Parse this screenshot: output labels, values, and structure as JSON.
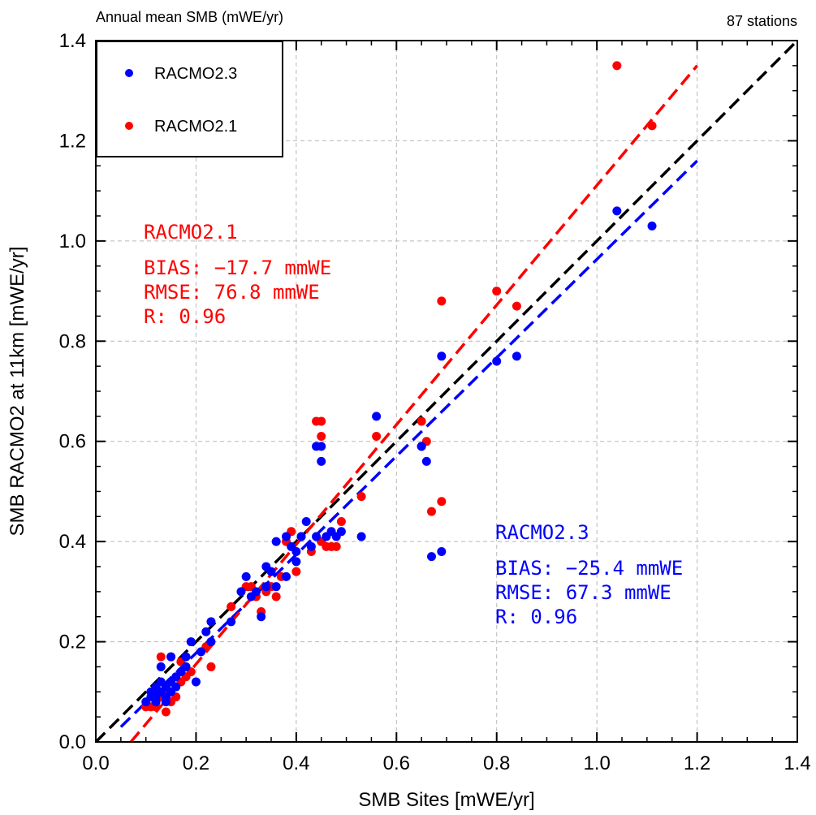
{
  "header": {
    "left_title": "Annual mean SMB (mWE/yr)",
    "right_title": "87 stations"
  },
  "colors": {
    "racmo23": "#0000ff",
    "racmo21": "#ff0000",
    "identity": "#000000",
    "grid": "#b8b8b8"
  },
  "legend": {
    "items": [
      {
        "label": "RACMO2.3",
        "color": "#0000ff"
      },
      {
        "label": "RACMO2.1",
        "color": "#ff0000"
      }
    ]
  },
  "stats": {
    "racmo21": {
      "name": "RACMO2.1",
      "bias": "BIAS: −17.7 mmWE",
      "rmse": "RMSE: 76.8 mmWE",
      "r": "R: 0.96"
    },
    "racmo23": {
      "name": "RACMO2.3",
      "bias": "BIAS: −25.4 mmWE",
      "rmse": "RMSE: 67.3 mmWE",
      "r": "R: 0.96"
    }
  },
  "chart_data": {
    "type": "scatter",
    "title": "Annual mean SMB (mWE/yr)",
    "subtitle": "87 stations",
    "xlabel": "SMB Sites [mWE/yr]",
    "ylabel": "SMB RACMO2 at 11km [mWE/yr]",
    "xlim": [
      0.0,
      1.4
    ],
    "ylim": [
      0.0,
      1.4
    ],
    "xticks": [
      "0.0",
      "0.2",
      "0.4",
      "0.6",
      "0.8",
      "1.0",
      "1.2",
      "1.4"
    ],
    "yticks": [
      "0.0",
      "0.2",
      "0.4",
      "0.6",
      "0.8",
      "1.0",
      "1.2",
      "1.4"
    ],
    "grid": true,
    "legend_position": "top-left",
    "reference_line": {
      "x": [
        0.0,
        1.4
      ],
      "y": [
        0.0,
        1.4
      ]
    },
    "series": [
      {
        "name": "RACMO2.3",
        "color": "#0000ff",
        "fit_line": {
          "x": [
            0.05,
            1.2
          ],
          "y": [
            0.03,
            1.16
          ]
        },
        "points": [
          [
            0.1,
            0.08
          ],
          [
            0.11,
            0.09
          ],
          [
            0.11,
            0.1
          ],
          [
            0.12,
            0.11
          ],
          [
            0.12,
            0.09
          ],
          [
            0.12,
            0.08
          ],
          [
            0.13,
            0.1
          ],
          [
            0.13,
            0.12
          ],
          [
            0.13,
            0.15
          ],
          [
            0.14,
            0.11
          ],
          [
            0.14,
            0.09
          ],
          [
            0.14,
            0.08
          ],
          [
            0.15,
            0.1
          ],
          [
            0.15,
            0.12
          ],
          [
            0.15,
            0.17
          ],
          [
            0.16,
            0.13
          ],
          [
            0.16,
            0.11
          ],
          [
            0.17,
            0.14
          ],
          [
            0.18,
            0.17
          ],
          [
            0.18,
            0.15
          ],
          [
            0.19,
            0.2
          ],
          [
            0.2,
            0.12
          ],
          [
            0.21,
            0.18
          ],
          [
            0.22,
            0.22
          ],
          [
            0.23,
            0.24
          ],
          [
            0.23,
            0.2
          ],
          [
            0.27,
            0.24
          ],
          [
            0.29,
            0.3
          ],
          [
            0.3,
            0.33
          ],
          [
            0.31,
            0.29
          ],
          [
            0.32,
            0.3
          ],
          [
            0.33,
            0.25
          ],
          [
            0.34,
            0.35
          ],
          [
            0.34,
            0.31
          ],
          [
            0.35,
            0.34
          ],
          [
            0.36,
            0.4
          ],
          [
            0.36,
            0.31
          ],
          [
            0.38,
            0.41
          ],
          [
            0.38,
            0.33
          ],
          [
            0.39,
            0.39
          ],
          [
            0.4,
            0.36
          ],
          [
            0.4,
            0.38
          ],
          [
            0.41,
            0.41
          ],
          [
            0.42,
            0.44
          ],
          [
            0.43,
            0.39
          ],
          [
            0.44,
            0.59
          ],
          [
            0.44,
            0.41
          ],
          [
            0.45,
            0.56
          ],
          [
            0.45,
            0.59
          ],
          [
            0.46,
            0.41
          ],
          [
            0.47,
            0.42
          ],
          [
            0.48,
            0.41
          ],
          [
            0.49,
            0.42
          ],
          [
            0.53,
            0.41
          ],
          [
            0.56,
            0.65
          ],
          [
            0.65,
            0.59
          ],
          [
            0.65,
            0.59
          ],
          [
            0.66,
            0.56
          ],
          [
            0.67,
            0.37
          ],
          [
            0.69,
            0.38
          ],
          [
            0.69,
            0.77
          ],
          [
            0.8,
            0.76
          ],
          [
            0.84,
            0.77
          ],
          [
            1.04,
            1.06
          ],
          [
            1.11,
            1.03
          ]
        ]
      },
      {
        "name": "RACMO2.1",
        "color": "#ff0000",
        "fit_line": {
          "x": [
            0.07,
            1.2
          ],
          "y": [
            0.0,
            1.35
          ]
        },
        "points": [
          [
            0.1,
            0.07
          ],
          [
            0.11,
            0.07
          ],
          [
            0.12,
            0.08
          ],
          [
            0.12,
            0.07
          ],
          [
            0.13,
            0.09
          ],
          [
            0.13,
            0.17
          ],
          [
            0.14,
            0.06
          ],
          [
            0.14,
            0.1
          ],
          [
            0.15,
            0.17
          ],
          [
            0.15,
            0.08
          ],
          [
            0.16,
            0.09
          ],
          [
            0.17,
            0.12
          ],
          [
            0.17,
            0.16
          ],
          [
            0.18,
            0.13
          ],
          [
            0.19,
            0.14
          ],
          [
            0.22,
            0.19
          ],
          [
            0.23,
            0.15
          ],
          [
            0.27,
            0.27
          ],
          [
            0.3,
            0.31
          ],
          [
            0.31,
            0.31
          ],
          [
            0.32,
            0.29
          ],
          [
            0.33,
            0.26
          ],
          [
            0.34,
            0.3
          ],
          [
            0.35,
            0.31
          ],
          [
            0.36,
            0.29
          ],
          [
            0.37,
            0.33
          ],
          [
            0.38,
            0.4
          ],
          [
            0.39,
            0.42
          ],
          [
            0.4,
            0.34
          ],
          [
            0.41,
            0.41
          ],
          [
            0.43,
            0.38
          ],
          [
            0.44,
            0.64
          ],
          [
            0.45,
            0.64
          ],
          [
            0.45,
            0.61
          ],
          [
            0.45,
            0.4
          ],
          [
            0.46,
            0.39
          ],
          [
            0.47,
            0.39
          ],
          [
            0.48,
            0.39
          ],
          [
            0.49,
            0.44
          ],
          [
            0.53,
            0.49
          ],
          [
            0.56,
            0.61
          ],
          [
            0.65,
            0.64
          ],
          [
            0.66,
            0.6
          ],
          [
            0.67,
            0.46
          ],
          [
            0.69,
            0.48
          ],
          [
            0.69,
            0.88
          ],
          [
            0.8,
            0.9
          ],
          [
            0.84,
            0.87
          ],
          [
            1.04,
            1.35
          ],
          [
            1.11,
            1.23
          ]
        ]
      }
    ]
  }
}
